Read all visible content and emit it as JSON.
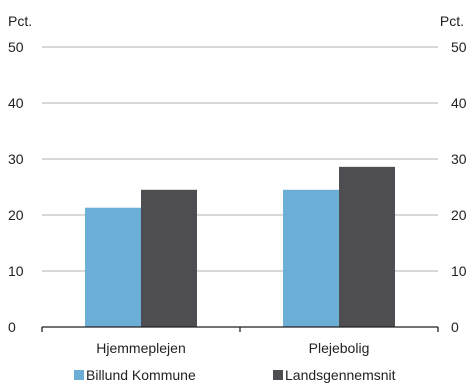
{
  "chart_data": {
    "type": "bar",
    "title": "",
    "xlabel": "",
    "ylabel": "",
    "unit_left": "Pct.",
    "unit_right": "Pct.",
    "categories": [
      "Hjemmeplejen",
      "Plejebolig"
    ],
    "series": [
      {
        "name": "Billund Kommune",
        "values": [
          21.3,
          24.5
        ],
        "color": "#6baed6"
      },
      {
        "name": "Landsgennemsnit",
        "values": [
          24.5,
          28.6
        ],
        "color": "#4d4d52"
      }
    ],
    "ylim": [
      0,
      50
    ],
    "yticks": [
      "0",
      "10",
      "20",
      "30",
      "40",
      "50"
    ],
    "grid": true,
    "legend": "bottom",
    "gridline_color": "#b0b0b0",
    "axis_color": "#222222"
  }
}
